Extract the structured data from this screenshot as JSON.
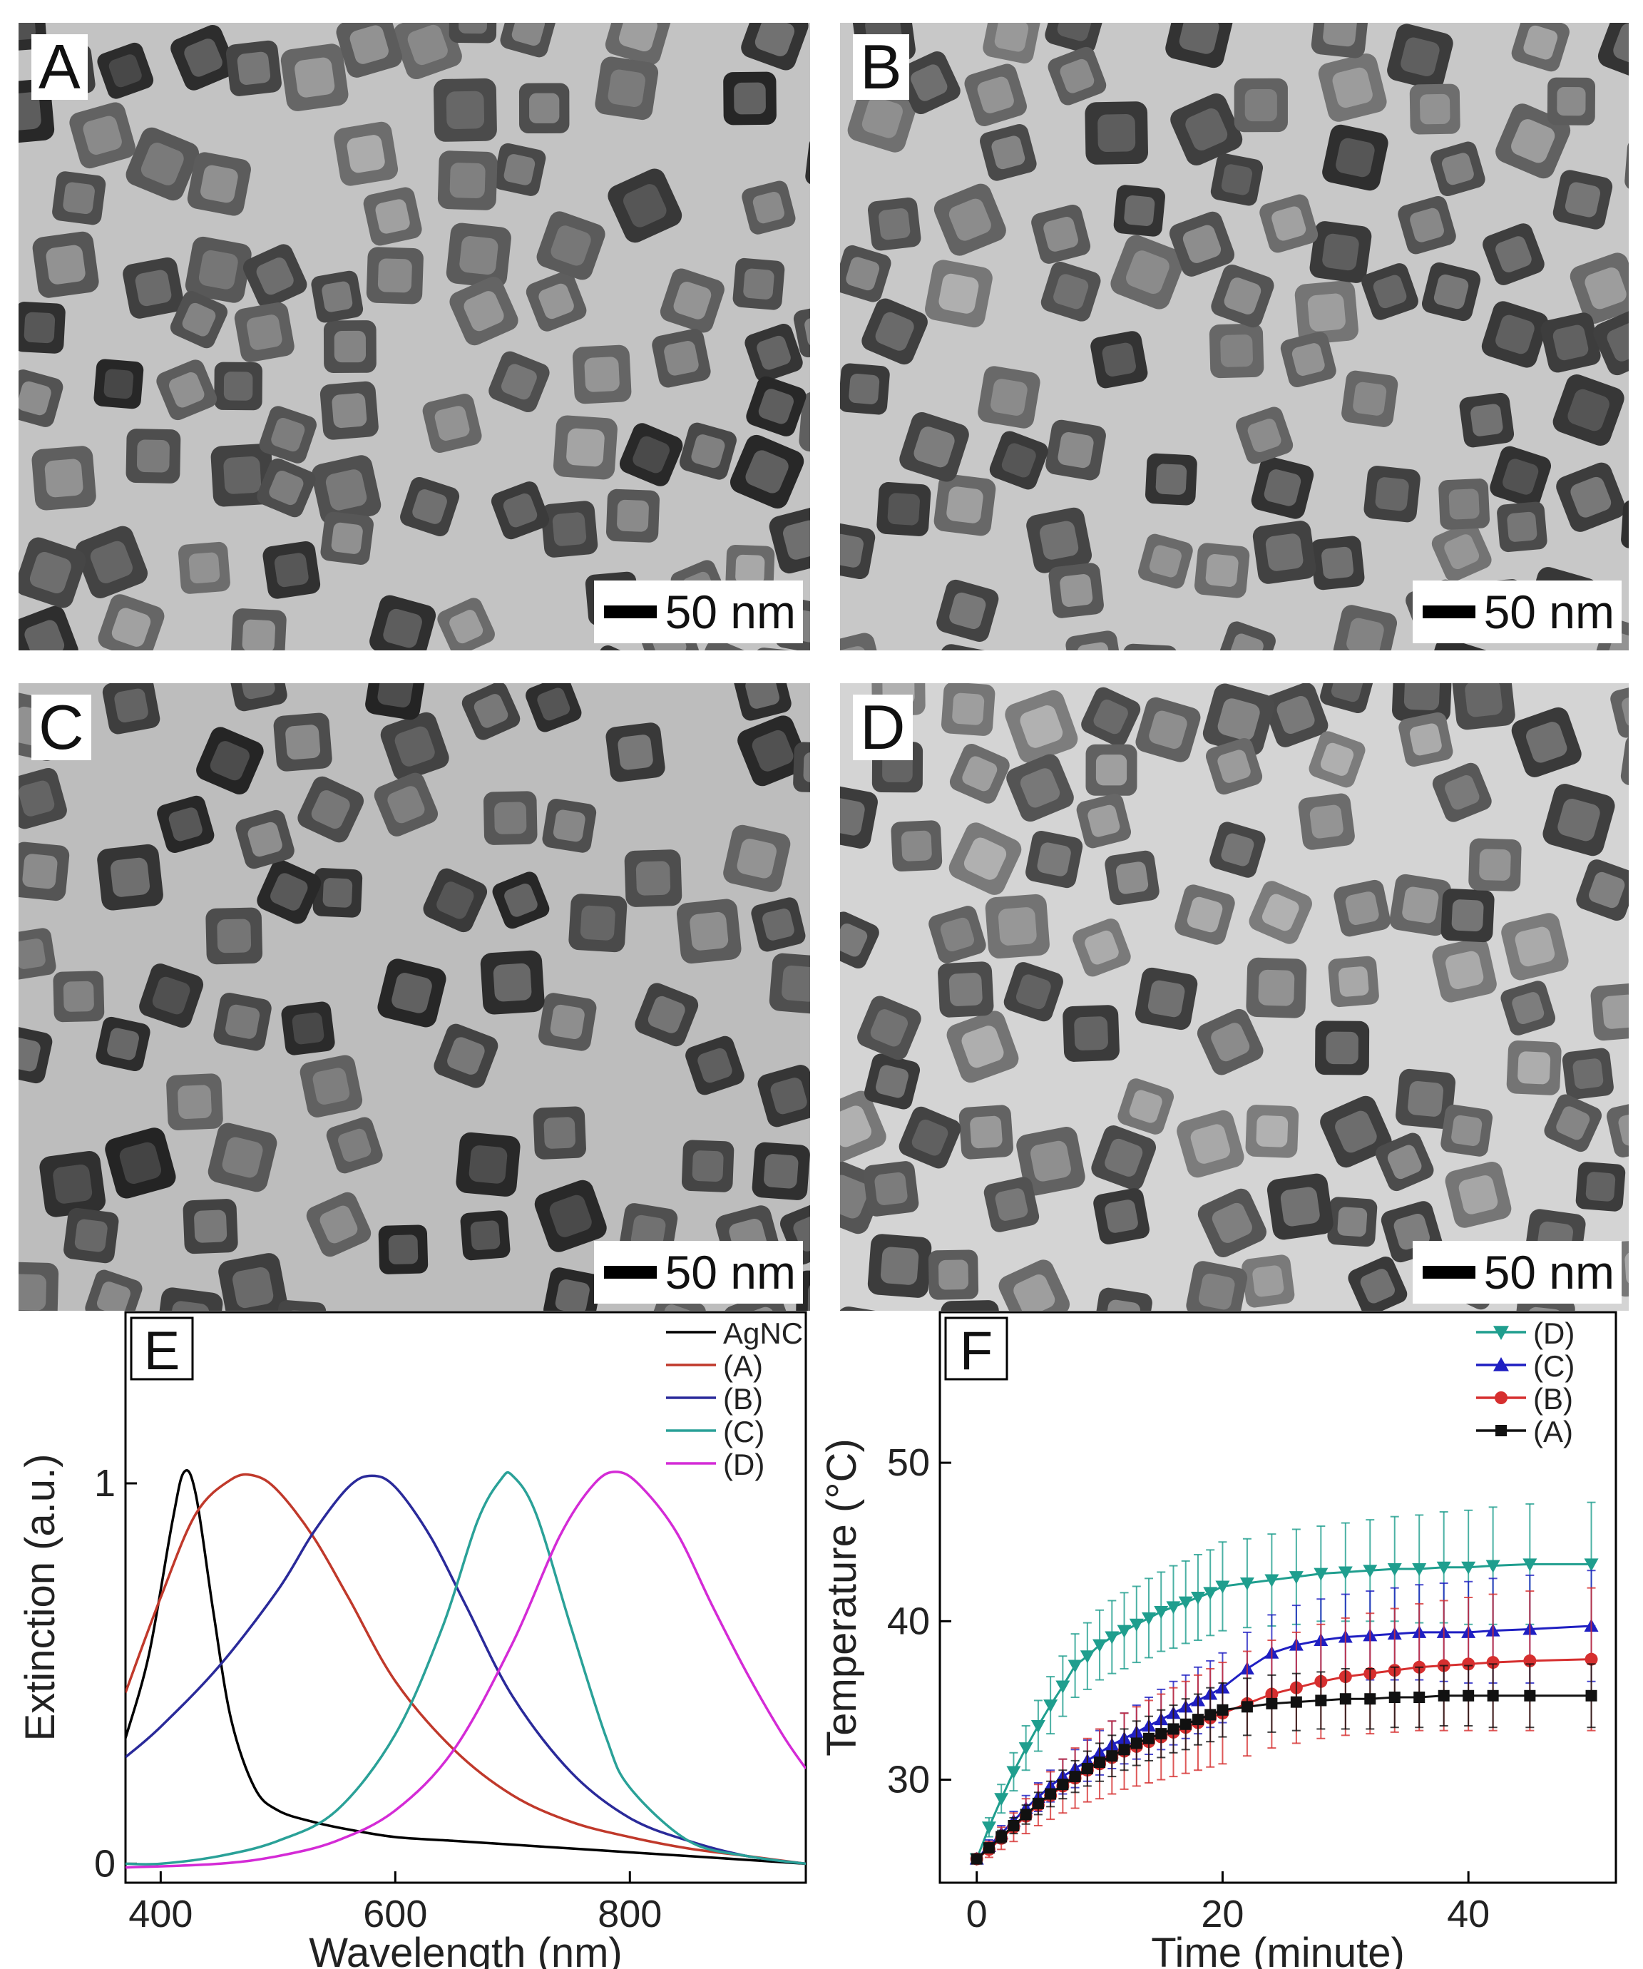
{
  "panels": [
    {
      "label": "A",
      "scale": "50 nm"
    },
    {
      "label": "B",
      "scale": "50 nm"
    },
    {
      "label": "C",
      "scale": "50 nm"
    },
    {
      "label": "D",
      "scale": "50 nm"
    }
  ],
  "chart_data": [
    {
      "type": "line",
      "panel_label": "E",
      "xlabel": "Wavelength (nm)",
      "ylabel": "Extinction (a.u.)",
      "xlim": [
        370,
        950
      ],
      "ylim": [
        -0.05,
        1.45
      ],
      "xticks": [
        "400",
        "600",
        "800"
      ],
      "xtick_values": [
        400,
        600,
        800
      ],
      "yticks": [
        "0",
        "1"
      ],
      "ytick_values": [
        0,
        1
      ],
      "legend_position": "top-right",
      "series": [
        {
          "name": "AgNC",
          "color": "#000000",
          "x": [
            370,
            390,
            410,
            420,
            430,
            445,
            460,
            480,
            500,
            530,
            560,
            600,
            650,
            700,
            750,
            800,
            850,
            900,
            950
          ],
          "y": [
            0.33,
            0.55,
            0.9,
            1.03,
            0.97,
            0.66,
            0.38,
            0.2,
            0.14,
            0.11,
            0.09,
            0.07,
            0.06,
            0.05,
            0.04,
            0.03,
            0.02,
            0.01,
            0.0
          ]
        },
        {
          "name": "(A)",
          "color": "#c0392b",
          "x": [
            370,
            400,
            430,
            460,
            480,
            500,
            530,
            560,
            600,
            650,
            700,
            750,
            800,
            850,
            900,
            950
          ],
          "y": [
            0.45,
            0.7,
            0.92,
            1.01,
            1.02,
            0.98,
            0.86,
            0.7,
            0.48,
            0.3,
            0.18,
            0.11,
            0.07,
            0.04,
            0.02,
            0.0
          ]
        },
        {
          "name": "(B)",
          "color": "#2a2a9a",
          "x": [
            370,
            400,
            450,
            500,
            530,
            560,
            580,
            600,
            630,
            660,
            700,
            750,
            800,
            850,
            900,
            950
          ],
          "y": [
            0.28,
            0.36,
            0.52,
            0.72,
            0.87,
            0.99,
            1.02,
            0.99,
            0.86,
            0.68,
            0.44,
            0.24,
            0.12,
            0.06,
            0.02,
            0.0
          ]
        },
        {
          "name": "(C)",
          "color": "#2aa198",
          "x": [
            370,
            400,
            450,
            500,
            550,
            600,
            640,
            670,
            690,
            700,
            720,
            750,
            780,
            800,
            850,
            900,
            950
          ],
          "y": [
            0.0,
            0.0,
            0.02,
            0.06,
            0.14,
            0.34,
            0.62,
            0.9,
            1.01,
            1.02,
            0.92,
            0.62,
            0.33,
            0.2,
            0.06,
            0.02,
            0.0
          ]
        },
        {
          "name": "(D)",
          "color": "#d42bd6",
          "x": [
            370,
            450,
            500,
            550,
            600,
            650,
            700,
            740,
            770,
            790,
            810,
            840,
            870,
            900,
            930,
            950
          ],
          "y": [
            -0.01,
            0.0,
            0.02,
            0.06,
            0.14,
            0.3,
            0.58,
            0.86,
            1.0,
            1.03,
            0.99,
            0.87,
            0.68,
            0.5,
            0.34,
            0.25
          ]
        }
      ]
    },
    {
      "type": "line",
      "panel_label": "F",
      "xlabel": "Time (minute)",
      "ylabel": "Temperature (°C)",
      "xlim": [
        -3,
        52
      ],
      "ylim": [
        23.5,
        59.5
      ],
      "xticks": [
        "0",
        "20",
        "40"
      ],
      "xtick_values": [
        0,
        20,
        40
      ],
      "yticks": [
        "30",
        "40",
        "50"
      ],
      "ytick_values": [
        30,
        40,
        50
      ],
      "legend_position": "top-right",
      "series": [
        {
          "name": "(D)",
          "color": "#1f9e8e",
          "marker": "triangle-down",
          "x": [
            0,
            1,
            2,
            3,
            4,
            5,
            6,
            7,
            8,
            9,
            10,
            11,
            12,
            13,
            14,
            15,
            16,
            17,
            18,
            19,
            20,
            22,
            24,
            26,
            28,
            30,
            32,
            34,
            36,
            38,
            40,
            42,
            45,
            50
          ],
          "y": [
            25,
            27,
            28.8,
            30.5,
            32,
            33.4,
            34.7,
            35.9,
            37.2,
            37.8,
            38.5,
            39,
            39.4,
            39.8,
            40.2,
            40.6,
            40.9,
            41.2,
            41.5,
            41.8,
            42.2,
            42.4,
            42.6,
            42.8,
            43,
            43.1,
            43.2,
            43.3,
            43.3,
            43.4,
            43.4,
            43.5,
            43.6,
            43.6
          ],
          "err": [
            0.3,
            0.6,
            0.9,
            1.2,
            1.4,
            1.6,
            1.8,
            1.9,
            2,
            2.1,
            2.2,
            2.3,
            2.4,
            2.4,
            2.5,
            2.5,
            2.6,
            2.6,
            2.7,
            2.7,
            2.8,
            2.8,
            2.9,
            3,
            3,
            3.1,
            3.2,
            3.3,
            3.4,
            3.5,
            3.6,
            3.7,
            3.8,
            3.9
          ]
        },
        {
          "name": "(C)",
          "color": "#1f1fc2",
          "marker": "triangle-up",
          "x": [
            0,
            1,
            2,
            3,
            4,
            5,
            6,
            7,
            8,
            9,
            10,
            11,
            12,
            13,
            14,
            15,
            16,
            17,
            18,
            19,
            20,
            22,
            24,
            26,
            28,
            30,
            32,
            34,
            36,
            38,
            40,
            42,
            45,
            50
          ],
          "y": [
            25,
            25.8,
            26.6,
            27.4,
            28.2,
            28.9,
            29.6,
            30.2,
            30.7,
            31.2,
            31.7,
            32.2,
            32.6,
            33,
            33.4,
            33.8,
            34.2,
            34.6,
            35,
            35.4,
            35.8,
            37,
            38,
            38.5,
            38.8,
            39,
            39.1,
            39.2,
            39.3,
            39.3,
            39.3,
            39.4,
            39.5,
            39.7
          ],
          "err": [
            0.3,
            0.4,
            0.5,
            0.6,
            0.8,
            0.9,
            1,
            1.1,
            1.2,
            1.3,
            1.4,
            1.5,
            1.6,
            1.7,
            1.8,
            1.9,
            2,
            2,
            2.1,
            2.1,
            2.2,
            2.3,
            2.4,
            2.5,
            2.6,
            2.7,
            2.8,
            2.9,
            3,
            3.1,
            3.2,
            3.3,
            3.4,
            3.5
          ]
        },
        {
          "name": "(B)",
          "color": "#d62f2f",
          "marker": "circle",
          "x": [
            0,
            1,
            2,
            3,
            4,
            5,
            6,
            7,
            8,
            9,
            10,
            11,
            12,
            13,
            14,
            15,
            16,
            17,
            18,
            19,
            20,
            22,
            24,
            26,
            28,
            30,
            32,
            34,
            36,
            38,
            40,
            42,
            45,
            50
          ],
          "y": [
            25,
            25.6,
            26.3,
            27,
            27.7,
            28.4,
            29,
            29.6,
            30.1,
            30.6,
            31,
            31.4,
            31.8,
            32.1,
            32.4,
            32.7,
            33,
            33.3,
            33.6,
            33.9,
            34.2,
            34.8,
            35.4,
            35.8,
            36.2,
            36.5,
            36.7,
            36.9,
            37.1,
            37.2,
            37.3,
            37.4,
            37.5,
            37.6
          ],
          "err": [
            0.3,
            0.5,
            0.7,
            0.9,
            1.1,
            1.3,
            1.5,
            1.7,
            1.9,
            2,
            2.2,
            2.3,
            2.4,
            2.5,
            2.6,
            2.7,
            2.8,
            2.9,
            3,
            3.1,
            3.2,
            3.3,
            3.4,
            3.5,
            3.6,
            3.7,
            3.8,
            3.9,
            4,
            4.1,
            4.2,
            4.3,
            4.4,
            4.5
          ]
        },
        {
          "name": "(A)",
          "color": "#111111",
          "marker": "square",
          "x": [
            0,
            1,
            2,
            3,
            4,
            5,
            6,
            7,
            8,
            9,
            10,
            11,
            12,
            13,
            14,
            15,
            16,
            17,
            18,
            19,
            20,
            22,
            24,
            26,
            28,
            30,
            32,
            34,
            36,
            38,
            40,
            42,
            45,
            50
          ],
          "y": [
            25,
            25.7,
            26.4,
            27.1,
            27.8,
            28.5,
            29.1,
            29.7,
            30.2,
            30.7,
            31.1,
            31.5,
            31.9,
            32.3,
            32.6,
            32.9,
            33.2,
            33.5,
            33.8,
            34.1,
            34.4,
            34.6,
            34.8,
            34.9,
            35,
            35.1,
            35.1,
            35.2,
            35.2,
            35.3,
            35.3,
            35.3,
            35.3,
            35.3
          ],
          "err": [
            0.2,
            0.3,
            0.4,
            0.5,
            0.6,
            0.7,
            0.8,
            0.9,
            1,
            1.1,
            1.2,
            1.3,
            1.3,
            1.4,
            1.4,
            1.5,
            1.5,
            1.6,
            1.6,
            1.7,
            1.7,
            1.8,
            1.8,
            1.8,
            1.8,
            1.9,
            1.9,
            1.9,
            1.9,
            1.9,
            1.9,
            2,
            2,
            2
          ]
        }
      ]
    }
  ]
}
